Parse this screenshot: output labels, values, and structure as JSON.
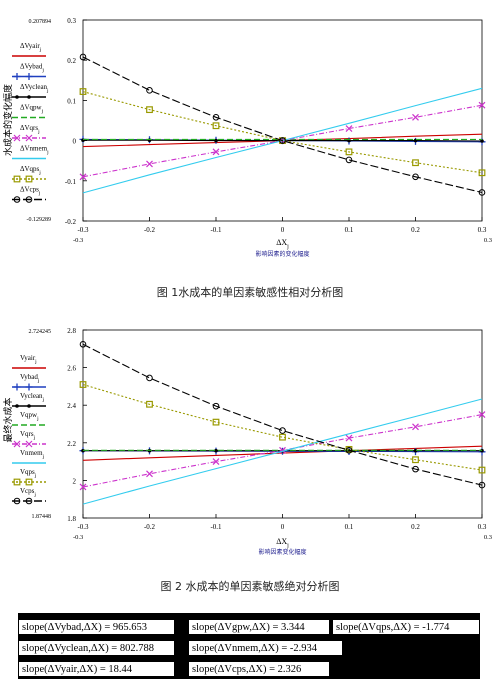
{
  "charts": [
    {
      "id": "chart1",
      "type": "line",
      "ylabel": "水成本的变化幅度",
      "xlabel": "ΔX",
      "xlabel_sub": "j",
      "xunit_note": "影响因素的变化幅度",
      "caption": "图  1水成本的单因素敏感性相对分析图",
      "x_range": [
        -0.3,
        0.3
      ],
      "y_range": [
        -0.2,
        0.3
      ],
      "y_ticks": [
        "0.3",
        "0.2",
        "0.1",
        "0",
        "-0.1",
        "-0.2"
      ],
      "y_min_label": "-0.129289",
      "y_max_label": "0.207894",
      "x_ticks": [
        "-0.3",
        "-0.2",
        "-0.1",
        "0",
        "0.1",
        "0.2",
        "0.3"
      ],
      "x_end_left": "-0.3",
      "x_end_right": "0.3",
      "legend": [
        {
          "label": "ΔVyair",
          "sub": "j",
          "color": "#cc0000",
          "dash": "",
          "marker": "none"
        },
        {
          "label": "ΔVybad",
          "sub": "j",
          "color": "#1f3fbf",
          "dash": "",
          "marker": "plus"
        },
        {
          "label": "ΔVyclean",
          "sub": "j",
          "color": "#000000",
          "dash": "",
          "marker": "dot"
        },
        {
          "label": "ΔVqpw",
          "sub": "j",
          "color": "#22aa22",
          "dash": "6,3",
          "marker": "none"
        },
        {
          "label": "ΔVqrs",
          "sub": "j",
          "color": "#cc33cc",
          "dash": "5,2,1,2",
          "marker": "x"
        },
        {
          "label": "ΔVnmem",
          "sub": "j",
          "color": "#33ccee",
          "dash": "",
          "marker": "none"
        },
        {
          "label": "ΔVqps",
          "sub": "j",
          "color": "#999900",
          "dash": "2,2",
          "marker": "square"
        },
        {
          "label": "ΔVcps",
          "sub": "j",
          "color": "#000000",
          "dash": "8,3",
          "marker": "circle"
        }
      ],
      "series": [
        {
          "name": "ΔVyair",
          "color": "#cc0000",
          "dash": "",
          "marker": "none",
          "y": [
            -0.015,
            -0.01,
            -0.005,
            0,
            0.005,
            0.011,
            0.016
          ]
        },
        {
          "name": "ΔVybad",
          "color": "#1f3fbf",
          "dash": "",
          "marker": "plus",
          "y": [
            0.003,
            0.002,
            0.001,
            0,
            -0.001,
            -0.002,
            -0.003
          ]
        },
        {
          "name": "ΔVyclean",
          "color": "#000000",
          "dash": "",
          "marker": "dot",
          "y": [
            0.001,
            0.001,
            0.0,
            0,
            0.0,
            0.0,
            -0.001
          ]
        },
        {
          "name": "ΔVqpw",
          "color": "#22aa22",
          "dash": "6,3",
          "marker": "none",
          "y": [
            0.003,
            0.003,
            0.003,
            0.003,
            0.003,
            0.003,
            0.003
          ]
        },
        {
          "name": "ΔVqrs",
          "color": "#cc33cc",
          "dash": "5,2,1,2",
          "marker": "x",
          "y": [
            -0.09,
            -0.058,
            -0.028,
            0,
            0.03,
            0.058,
            0.088
          ]
        },
        {
          "name": "ΔVnmem",
          "color": "#33ccee",
          "dash": "",
          "marker": "none",
          "y": [
            -0.13,
            -0.085,
            -0.042,
            0,
            0.043,
            0.087,
            0.13
          ]
        },
        {
          "name": "ΔVqps",
          "color": "#999900",
          "dash": "2,2",
          "marker": "square",
          "y": [
            0.122,
            0.077,
            0.037,
            0,
            -0.028,
            -0.055,
            -0.08
          ]
        },
        {
          "name": "ΔVcps",
          "color": "#000000",
          "dash": "8,3",
          "marker": "circle",
          "y": [
            0.208,
            0.125,
            0.058,
            0,
            -0.048,
            -0.09,
            -0.129
          ]
        }
      ]
    },
    {
      "id": "chart2",
      "type": "line",
      "ylabel": "最终水成本",
      "xlabel": "ΔX",
      "xlabel_sub": "j",
      "xunit_note": "影响因素变化幅度",
      "caption": "图  2 水成本的单因素敏感绝对分析图",
      "x_range": [
        -0.3,
        0.3
      ],
      "y_range": [
        1.8,
        2.8
      ],
      "y_ticks": [
        "2.8",
        "2.6",
        "2.4",
        "2.2",
        "2",
        "1.8"
      ],
      "y_min_label": "1.87448",
      "y_max_label": "2.724245",
      "x_ticks": [
        "-0.3",
        "-0.2",
        "-0.1",
        "0",
        "0.1",
        "0.2",
        "0.3"
      ],
      "x_end_left": "-0.3",
      "x_end_right": "0.3",
      "legend": [
        {
          "label": "Vyair",
          "sub": "j",
          "color": "#cc0000",
          "dash": "",
          "marker": "none"
        },
        {
          "label": "Vybad",
          "sub": "j",
          "color": "#1f3fbf",
          "dash": "",
          "marker": "plus"
        },
        {
          "label": "Vyclean",
          "sub": "j",
          "color": "#000000",
          "dash": "",
          "marker": "dot"
        },
        {
          "label": "Vqpw",
          "sub": "j",
          "color": "#22aa22",
          "dash": "6,3",
          "marker": "none"
        },
        {
          "label": "Vqrs",
          "sub": "j",
          "color": "#cc33cc",
          "dash": "5,2,1,2",
          "marker": "x"
        },
        {
          "label": "Vnmem",
          "sub": "j",
          "color": "#33ccee",
          "dash": "",
          "marker": "none"
        },
        {
          "label": "Vqps",
          "sub": "j",
          "color": "#999900",
          "dash": "2,2",
          "marker": "square"
        },
        {
          "label": "Vcps",
          "sub": "j",
          "color": "#000000",
          "dash": "8,3",
          "marker": "circle"
        }
      ],
      "series": [
        {
          "name": "Vyair",
          "color": "#cc0000",
          "dash": "",
          "marker": "none",
          "y": [
            2.107,
            2.12,
            2.133,
            2.145,
            2.158,
            2.17,
            2.182
          ]
        },
        {
          "name": "Vybad",
          "color": "#1f3fbf",
          "dash": "",
          "marker": "plus",
          "y": [
            2.158,
            2.157,
            2.156,
            2.155,
            2.154,
            2.153,
            2.152
          ]
        },
        {
          "name": "Vyclean",
          "color": "#000000",
          "dash": "",
          "marker": "dot",
          "y": [
            2.158,
            2.158,
            2.158,
            2.158,
            2.158,
            2.158,
            2.158
          ]
        },
        {
          "name": "Vqpw",
          "color": "#22aa22",
          "dash": "6,3",
          "marker": "none",
          "y": [
            2.16,
            2.16,
            2.16,
            2.16,
            2.16,
            2.16,
            2.16
          ]
        },
        {
          "name": "Vqrs",
          "color": "#cc33cc",
          "dash": "5,2,1,2",
          "marker": "x",
          "y": [
            1.965,
            2.035,
            2.1,
            2.16,
            2.225,
            2.285,
            2.35
          ]
        },
        {
          "name": "Vnmem",
          "color": "#33ccee",
          "dash": "",
          "marker": "none",
          "y": [
            1.874,
            1.97,
            2.063,
            2.155,
            2.248,
            2.34,
            2.433
          ]
        },
        {
          "name": "Vqps",
          "color": "#999900",
          "dash": "2,2",
          "marker": "square",
          "y": [
            2.51,
            2.405,
            2.31,
            2.23,
            2.165,
            2.11,
            2.055
          ]
        },
        {
          "name": "Vcps",
          "color": "#000000",
          "dash": "8,3",
          "marker": "circle",
          "y": [
            2.724,
            2.545,
            2.395,
            2.265,
            2.16,
            2.06,
            1.975
          ]
        }
      ]
    }
  ],
  "slopes": [
    {
      "text": "slope(ΔVybad,ΔX) = 965.653"
    },
    {
      "text": "slope(ΔVgpw,ΔX) = 3.344"
    },
    {
      "text": "slope(ΔVqps,ΔX) = -1.774"
    },
    {
      "text": "slope(ΔVyclean,ΔX) = 802.788"
    },
    {
      "text": "slope(ΔVnmem,ΔX) = -2.934"
    },
    {
      "text": "slope(ΔVyair,ΔX) = 18.44"
    },
    {
      "text": "slope(ΔVcps,ΔX) = 2.326"
    }
  ]
}
